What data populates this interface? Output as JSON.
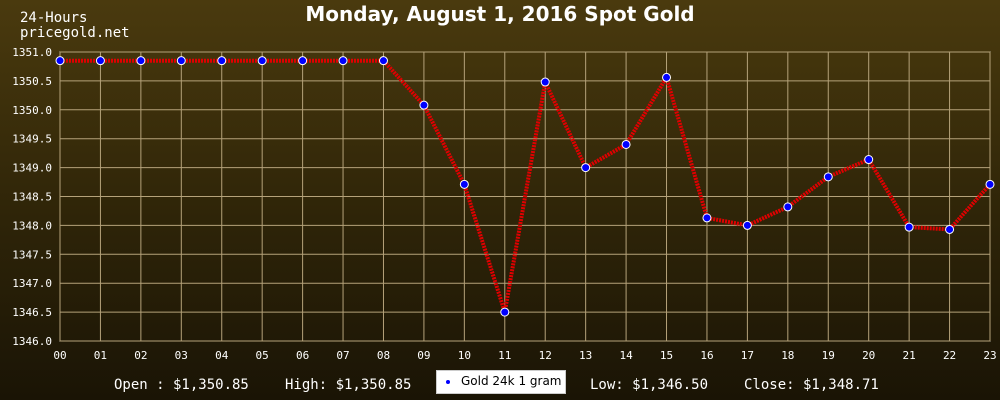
{
  "header": {
    "title": "Monday, August 1, 2016 Spot Gold",
    "brand_line1": "24-Hours",
    "brand_line2": "pricegold.net"
  },
  "footer": {
    "open": "Open : $1,350.85",
    "high": "High: $1,350.85",
    "low": "Low: $1,346.50",
    "close": "Close: $1,348.71",
    "legend_label": "Gold 24k 1 gram"
  },
  "colors": {
    "line": "#e00000",
    "marker": "#0000ff",
    "grid": "#b5a27a",
    "axis": "#ffffff"
  },
  "chart_data": {
    "type": "line",
    "title": "Monday, August 1, 2016 Spot Gold",
    "xlabel": "",
    "ylabel": "",
    "categories": [
      "00",
      "01",
      "02",
      "03",
      "04",
      "05",
      "06",
      "07",
      "08",
      "09",
      "10",
      "11",
      "12",
      "13",
      "14",
      "15",
      "16",
      "17",
      "18",
      "19",
      "20",
      "21",
      "22",
      "23"
    ],
    "series": [
      {
        "name": "Gold 24k 1 gram",
        "values": [
          1350.85,
          1350.85,
          1350.85,
          1350.85,
          1350.85,
          1350.85,
          1350.85,
          1350.85,
          1350.85,
          1350.08,
          1348.71,
          1346.5,
          1350.48,
          1349.0,
          1349.4,
          1350.56,
          1348.13,
          1348.0,
          1348.32,
          1348.84,
          1349.14,
          1347.97,
          1347.93,
          1348.71
        ]
      }
    ],
    "ylim": [
      1346.0,
      1351.0
    ],
    "yticks": [
      "1351.0",
      "1350.5",
      "1350.0",
      "1349.5",
      "1349.0",
      "1348.5",
      "1348.0",
      "1347.5",
      "1347.0",
      "1346.5",
      "1346.0"
    ],
    "grid": true,
    "legend": "bottom-center"
  }
}
